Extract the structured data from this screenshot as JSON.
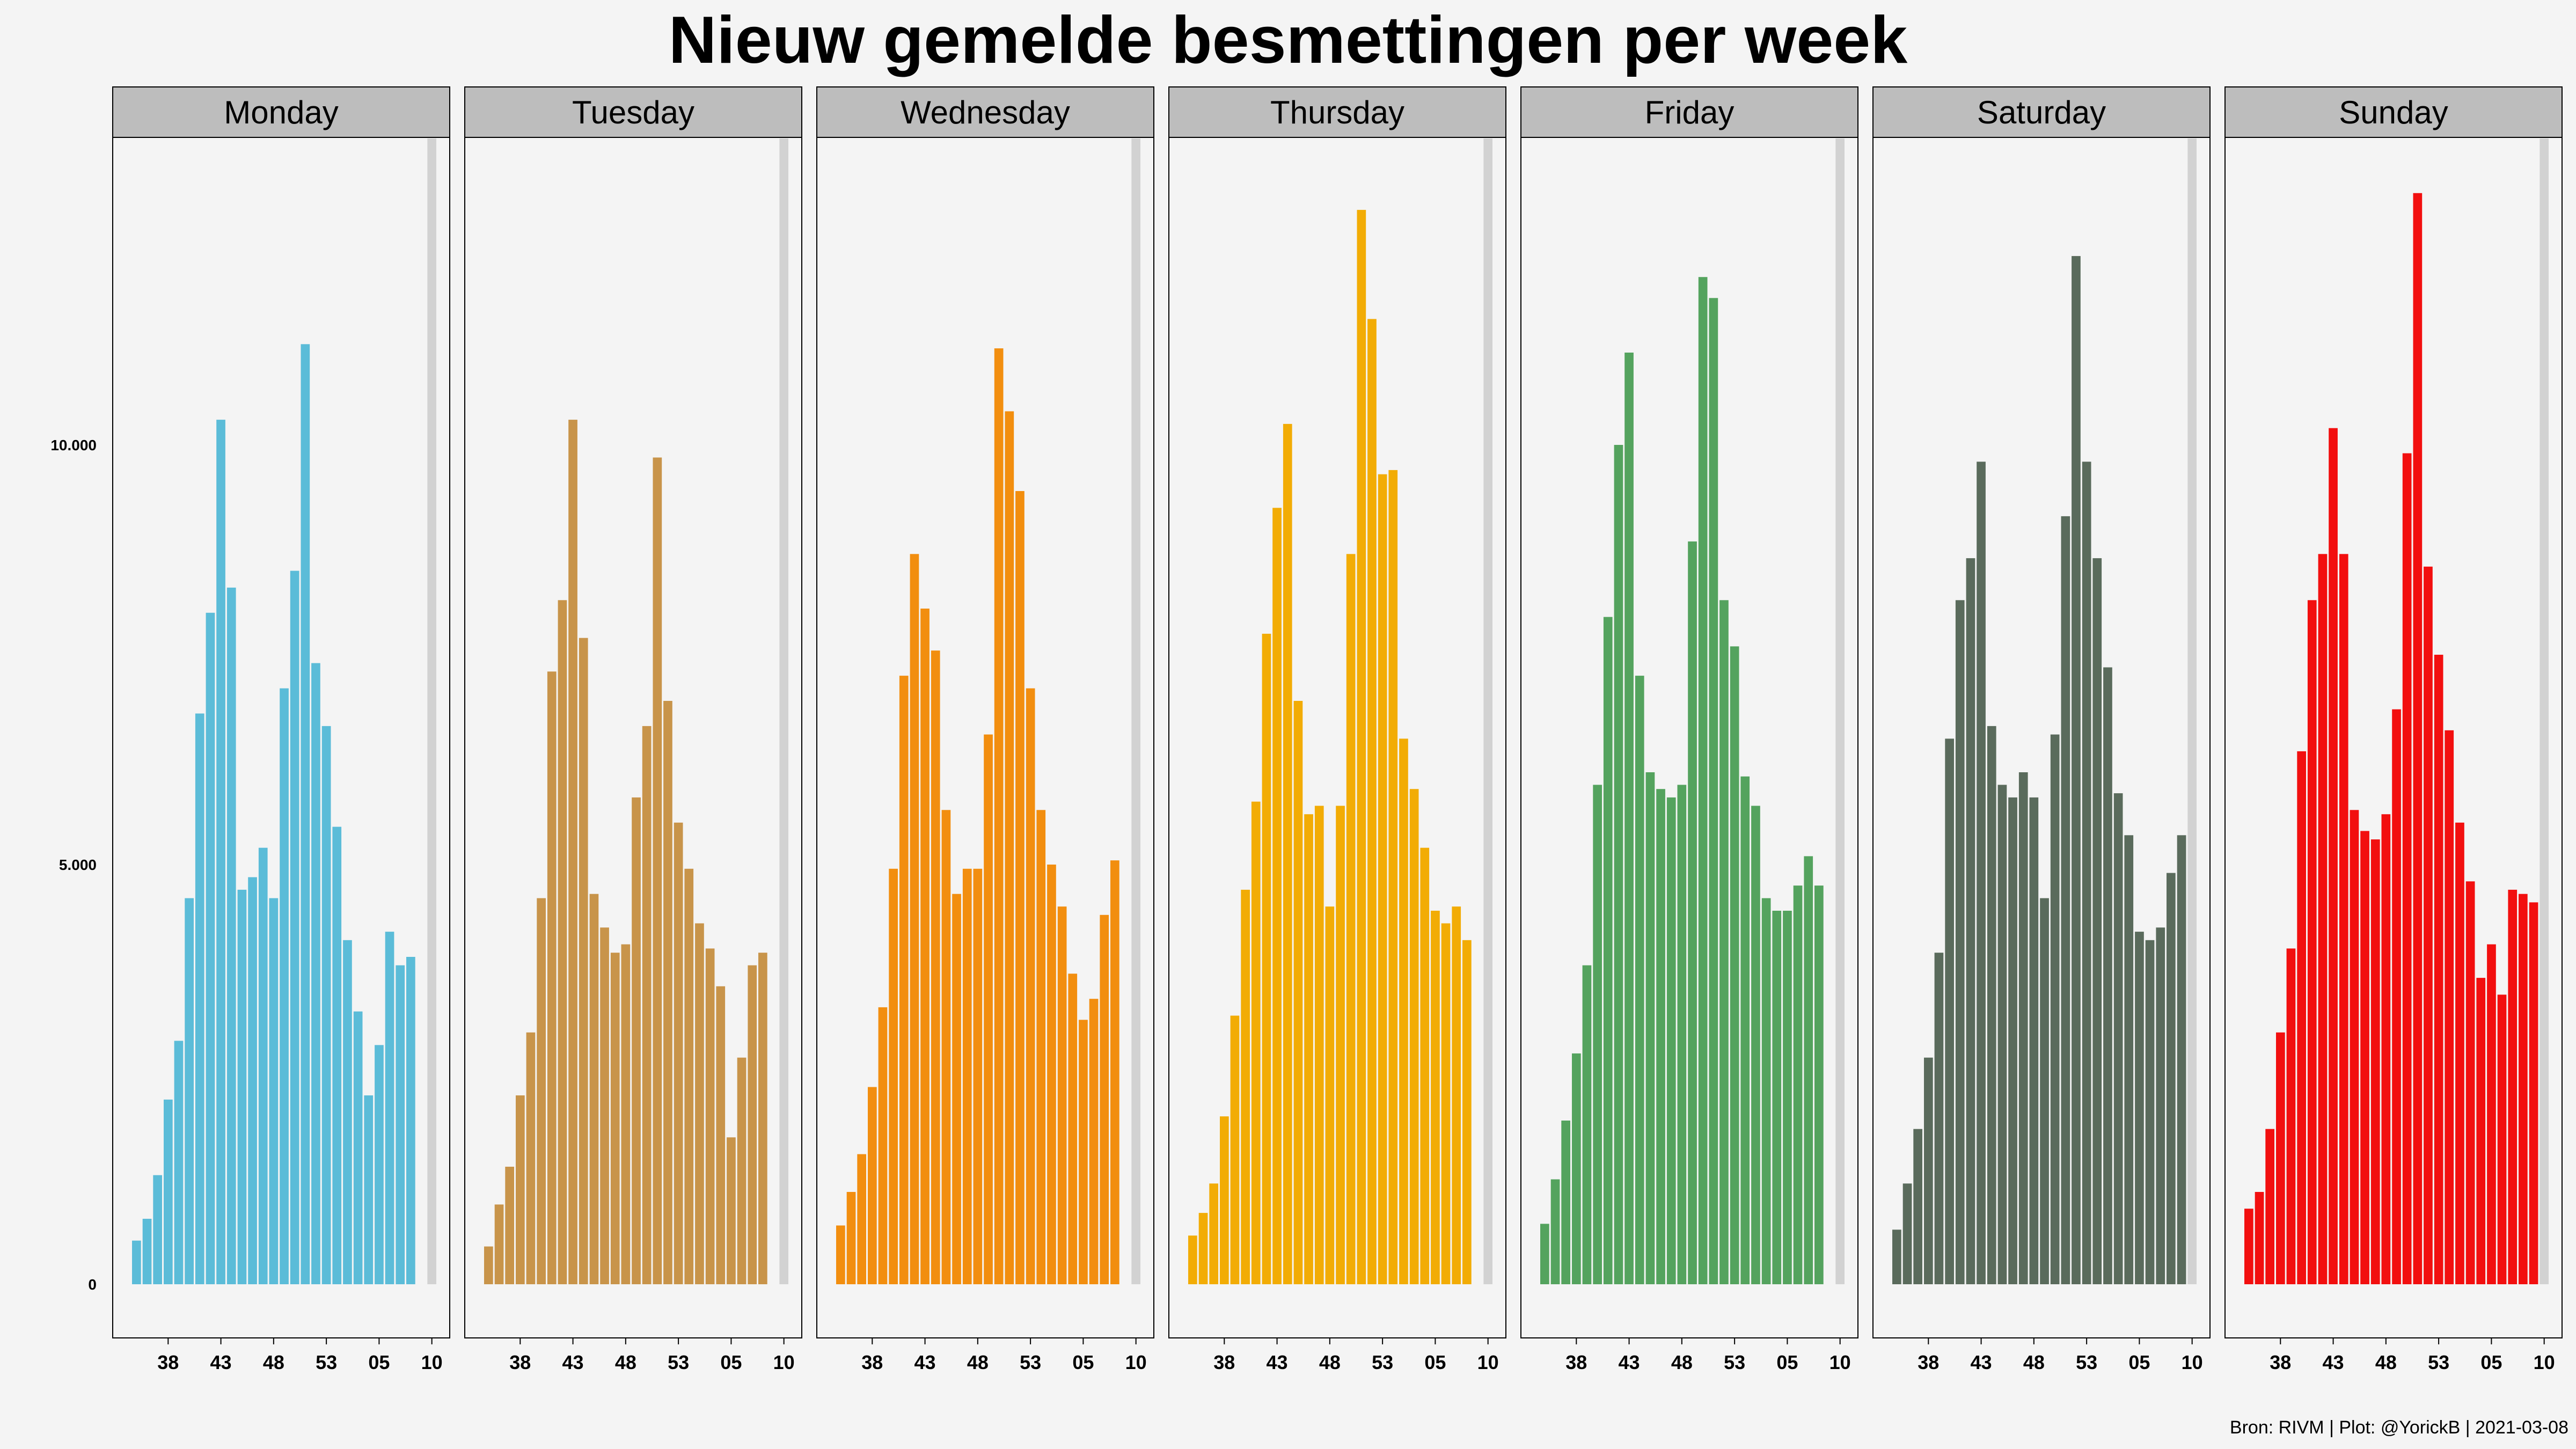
{
  "chart_data": {
    "type": "bar",
    "title": "Nieuw gemelde besmettingen per week",
    "xlabel": "",
    "ylabel": "",
    "ylim": [
      0,
      13600
    ],
    "y_ticks": [
      {
        "value": 0,
        "label": "0"
      },
      {
        "value": 5000,
        "label": "5.000"
      },
      {
        "value": 10000,
        "label": "10.000"
      }
    ],
    "x_ticks": [
      "38",
      "43",
      "48",
      "53",
      "05",
      "10"
    ],
    "weeks": [
      "35",
      "36",
      "37",
      "38",
      "39",
      "40",
      "41",
      "42",
      "43",
      "44",
      "45",
      "46",
      "47",
      "48",
      "49",
      "50",
      "51",
      "52",
      "53",
      "01",
      "02",
      "03",
      "04",
      "05",
      "06",
      "07",
      "08",
      "09",
      "10"
    ],
    "grid": false,
    "highlight_week": "10",
    "highlight_color": "#d2d2d2",
    "panels": [
      {
        "name": "Monday",
        "color": "#5bbcd8",
        "values": [
          520,
          780,
          1300,
          2200,
          2900,
          4600,
          6800,
          8000,
          10300,
          8300,
          4700,
          4850,
          5200,
          4600,
          7100,
          8500,
          11200,
          7400,
          6650,
          5450,
          4100,
          3250,
          2250,
          2850,
          4200,
          3800,
          3900
        ]
      },
      {
        "name": "Tuesday",
        "color": "#c8944a",
        "values": [
          450,
          950,
          1400,
          2250,
          3000,
          4600,
          7300,
          8150,
          10300,
          7700,
          4650,
          4250,
          3950,
          4050,
          5800,
          6650,
          9850,
          6950,
          5500,
          4950,
          4300,
          4000,
          3550,
          1750,
          2700,
          3800,
          3950
        ]
      },
      {
        "name": "Wednesday",
        "color": "#f28e0f",
        "values": [
          700,
          1100,
          1550,
          2350,
          3300,
          4950,
          7250,
          8700,
          8050,
          7550,
          5650,
          4650,
          4950,
          4950,
          6550,
          11150,
          10400,
          9450,
          7100,
          5650,
          5000,
          4500,
          3700,
          3150,
          3400,
          4400,
          5050
        ]
      },
      {
        "name": "Thursday",
        "color": "#f2ac05",
        "values": [
          580,
          850,
          1200,
          2000,
          3200,
          4700,
          5750,
          7750,
          9250,
          10250,
          6950,
          5600,
          5700,
          4500,
          5700,
          8700,
          12800,
          11500,
          9650,
          9700,
          6500,
          5900,
          5200,
          4450,
          4300,
          4500,
          4100
        ]
      },
      {
        "name": "Friday",
        "color": "#54a35e",
        "values": [
          720,
          1250,
          1950,
          2750,
          3800,
          5950,
          7950,
          10000,
          11100,
          7250,
          6100,
          5900,
          5800,
          5950,
          8850,
          12000,
          11750,
          8150,
          7600,
          6050,
          5700,
          4600,
          4450,
          4450,
          4750,
          5100,
          4750
        ]
      },
      {
        "name": "Saturday",
        "color": "#5a6b5c",
        "values": [
          650,
          1200,
          1850,
          2700,
          3950,
          6500,
          8150,
          8650,
          9800,
          6650,
          5950,
          5800,
          6100,
          5800,
          4600,
          6550,
          9150,
          12250,
          9800,
          8650,
          7350,
          5850,
          5350,
          4200,
          4100,
          4250,
          4900,
          5350
        ]
      },
      {
        "name": "Sunday",
        "color": "#f20f0f",
        "values": [
          900,
          1100,
          1850,
          3000,
          4000,
          6350,
          8150,
          8700,
          10200,
          8700,
          5650,
          5400,
          5300,
          5600,
          6850,
          9900,
          13000,
          8550,
          7500,
          6600,
          5500,
          4800,
          3650,
          4050,
          3450,
          4700,
          4650,
          4550
        ]
      }
    ]
  },
  "caption": "Bron: RIVM | Plot: @YorickB |  2021-03-08"
}
